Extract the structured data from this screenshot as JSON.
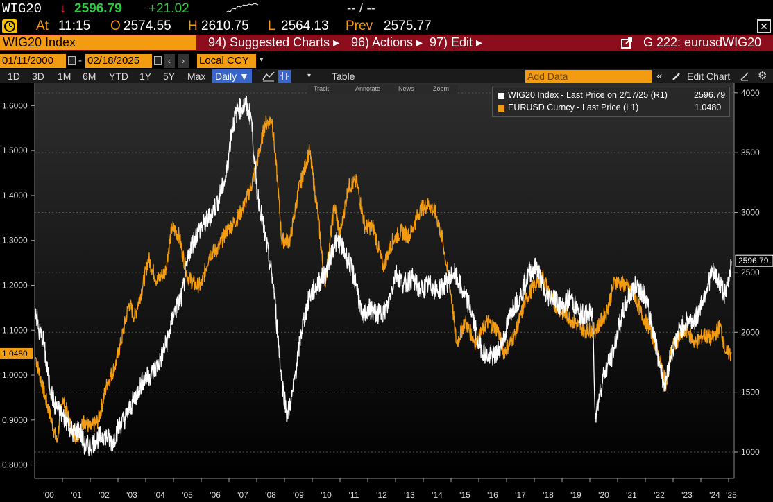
{
  "quote": {
    "ticker": "WIG20",
    "arrow": "↓",
    "last": "2596.79",
    "change": "+21.02",
    "dashes": "-- / --",
    "at_label": "At",
    "time": "11:15",
    "open_label": "O",
    "open": "2574.55",
    "high_label": "H",
    "high": "2610.75",
    "low_label": "L",
    "low": "2564.13",
    "prev_label": "Prev",
    "prev": "2575.77"
  },
  "toolbar": {
    "security": "WIG20 Index",
    "suggested": "94) Suggested Charts ▸",
    "actions": "96) Actions ▸",
    "edit": "97) Edit ▸",
    "chart_name": "G 222: eurusdWIG20"
  },
  "dates": {
    "start": "01/11/2000",
    "sep": "-",
    "end": "02/18/2025",
    "currency": "Local CCY"
  },
  "ranges": {
    "items": [
      "1D",
      "3D",
      "1M",
      "6M",
      "YTD",
      "1Y",
      "5Y",
      "Max"
    ],
    "frequency": "Daily ▼",
    "table": "Table",
    "add_data_placeholder": "Add Data",
    "edit_chart": "Edit Chart"
  },
  "minitools": {
    "track": "Track",
    "annotate": "Annotate",
    "news": "News",
    "zoom": "Zoom"
  },
  "legend": {
    "wig": "WIG20 Index - Last Price on 2/17/25 (R1)",
    "wig_val": "2596.79",
    "eur": "EURUSD Curncy - Last Price (L1)",
    "eur_val": "1.0480"
  },
  "colors": {
    "wig": "#ffffff",
    "eur": "#f39c12",
    "toolbar": "#8c0d1b",
    "accent": "#f39c12",
    "up": "#2ecc40",
    "down": "#e0242a"
  },
  "chart_data": {
    "type": "line",
    "x_ticks": [
      "'00",
      "'01",
      "'02",
      "'03",
      "'04",
      "'05",
      "'06",
      "'07",
      "'08",
      "'09",
      "'10",
      "'11",
      "'12",
      "'13",
      "'14",
      "'15",
      "'16",
      "'17",
      "'18",
      "'19",
      "'20",
      "'21",
      "'22",
      "'23",
      "'24",
      "'25"
    ],
    "left_axis": {
      "ticks": [
        "0.8000",
        "0.9000",
        "1.0000",
        "1.1000",
        "1.2000",
        "1.3000",
        "1.4000",
        "1.5000",
        "1.6000"
      ],
      "ylim": [
        0.77,
        1.65
      ],
      "last_label": "1.0480"
    },
    "right_axis": {
      "ticks": [
        "1000",
        "1500",
        "2000",
        "2500",
        "3000",
        "3500",
        "4000"
      ],
      "ylim": [
        780,
        4080
      ],
      "last_label": "2596.79"
    },
    "series": [
      {
        "name": "EURUSD Curncy",
        "axis": "left",
        "x": [
          2000.03,
          2000.3,
          2000.6,
          2000.8,
          2001.0,
          2001.3,
          2001.5,
          2001.8,
          2002.0,
          2002.3,
          2002.6,
          2002.9,
          2003.1,
          2003.4,
          2003.6,
          2003.9,
          2004.1,
          2004.4,
          2004.7,
          2004.95,
          2005.2,
          2005.5,
          2005.8,
          2006.0,
          2006.3,
          2006.6,
          2006.9,
          2007.2,
          2007.5,
          2007.8,
          2008.0,
          2008.3,
          2008.55,
          2008.75,
          2008.9,
          2009.2,
          2009.5,
          2009.9,
          2010.2,
          2010.45,
          2010.8,
          2011.0,
          2011.3,
          2011.6,
          2011.9,
          2012.2,
          2012.55,
          2012.9,
          2013.2,
          2013.5,
          2013.9,
          2014.2,
          2014.45,
          2014.7,
          2015.0,
          2015.2,
          2015.5,
          2015.9,
          2016.3,
          2016.7,
          2016.9,
          2017.3,
          2017.7,
          2018.0,
          2018.3,
          2018.7,
          2019.0,
          2019.4,
          2019.8,
          2020.2,
          2020.6,
          2020.9,
          2021.3,
          2021.6,
          2021.9,
          2022.2,
          2022.5,
          2022.75,
          2022.95,
          2023.2,
          2023.5,
          2023.8,
          2024.1,
          2024.4,
          2024.7,
          2024.9,
          2025.1
        ],
        "y": [
          1.04,
          0.97,
          0.9,
          0.85,
          0.95,
          0.89,
          0.86,
          0.9,
          0.88,
          0.9,
          0.98,
          1.02,
          1.07,
          1.16,
          1.13,
          1.2,
          1.26,
          1.21,
          1.23,
          1.33,
          1.31,
          1.22,
          1.2,
          1.2,
          1.27,
          1.28,
          1.32,
          1.34,
          1.37,
          1.42,
          1.47,
          1.56,
          1.57,
          1.43,
          1.3,
          1.3,
          1.41,
          1.5,
          1.36,
          1.2,
          1.38,
          1.31,
          1.42,
          1.43,
          1.33,
          1.33,
          1.24,
          1.3,
          1.32,
          1.31,
          1.37,
          1.38,
          1.36,
          1.3,
          1.18,
          1.07,
          1.12,
          1.07,
          1.12,
          1.1,
          1.05,
          1.09,
          1.17,
          1.2,
          1.22,
          1.16,
          1.14,
          1.12,
          1.1,
          1.1,
          1.14,
          1.21,
          1.2,
          1.18,
          1.13,
          1.1,
          1.04,
          0.98,
          1.06,
          1.08,
          1.1,
          1.07,
          1.09,
          1.08,
          1.11,
          1.05,
          1.048
        ]
      },
      {
        "name": "WIG20 Index",
        "axis": "right",
        "x": [
          2000.03,
          2000.15,
          2000.3,
          2000.5,
          2000.7,
          2001.0,
          2001.2,
          2001.4,
          2001.6,
          2001.8,
          2002.0,
          2002.2,
          2002.5,
          2002.8,
          2003.0,
          2003.3,
          2003.6,
          2003.9,
          2004.2,
          2004.5,
          2004.8,
          2005.0,
          2005.3,
          2005.6,
          2005.9,
          2006.1,
          2006.4,
          2006.6,
          2006.9,
          2007.1,
          2007.3,
          2007.6,
          2007.8,
          2008.0,
          2008.3,
          2008.6,
          2008.9,
          2009.1,
          2009.3,
          2009.6,
          2009.9,
          2010.2,
          2010.5,
          2010.8,
          2011.0,
          2011.3,
          2011.6,
          2011.8,
          2012.0,
          2012.4,
          2012.7,
          2013.0,
          2013.3,
          2013.6,
          2013.9,
          2014.2,
          2014.5,
          2014.8,
          2015.1,
          2015.4,
          2015.7,
          2016.0,
          2016.3,
          2016.6,
          2016.9,
          2017.2,
          2017.5,
          2017.8,
          2018.1,
          2018.4,
          2018.7,
          2019.0,
          2019.3,
          2019.6,
          2019.9,
          2020.1,
          2020.2,
          2020.5,
          2020.8,
          2021.1,
          2021.4,
          2021.7,
          2022.0,
          2022.3,
          2022.5,
          2022.7,
          2022.9,
          2023.2,
          2023.5,
          2023.8,
          2024.1,
          2024.4,
          2024.6,
          2024.9,
          2025.1
        ],
        "y": [
          2200,
          2000,
          1950,
          1600,
          1400,
          1300,
          1250,
          1150,
          1200,
          1050,
          1050,
          1100,
          1150,
          1080,
          1200,
          1300,
          1450,
          1600,
          1650,
          1750,
          1950,
          2150,
          2300,
          2700,
          2850,
          2900,
          3000,
          3100,
          3300,
          3700,
          3850,
          3900,
          3800,
          3200,
          2800,
          2400,
          1600,
          1300,
          1500,
          2000,
          2300,
          2400,
          2500,
          2750,
          2750,
          2600,
          2400,
          2100,
          2200,
          2150,
          2200,
          2500,
          2400,
          2450,
          2350,
          2400,
          2350,
          2400,
          2500,
          2350,
          2200,
          1900,
          1800,
          1800,
          1950,
          2200,
          2300,
          2500,
          2550,
          2300,
          2300,
          2200,
          2300,
          2150,
          2150,
          2150,
          1300,
          1650,
          1800,
          2100,
          2300,
          2400,
          2300,
          2000,
          1750,
          1550,
          1800,
          2000,
          2100,
          2100,
          2300,
          2500,
          2450,
          2300,
          2596.79
        ]
      }
    ]
  }
}
